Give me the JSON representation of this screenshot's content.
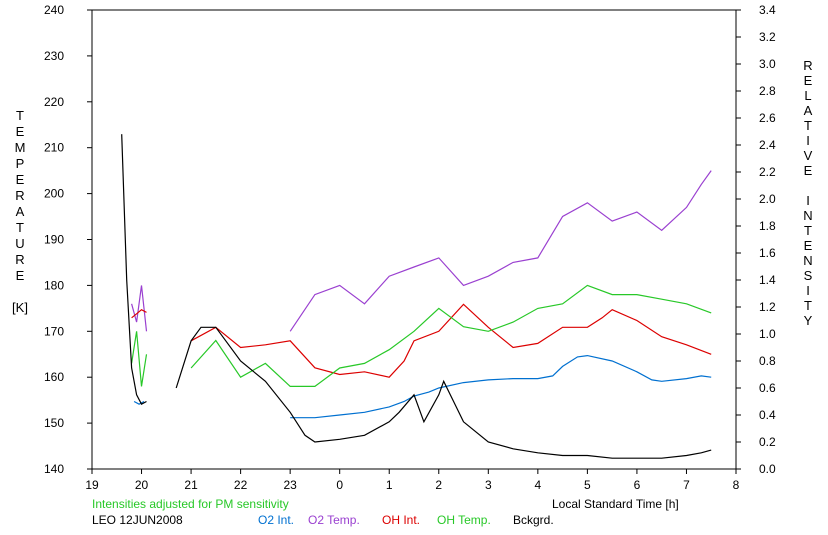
{
  "chart_data": {
    "type": "line",
    "note": "Intensities adjusted for PM sensitivity",
    "site_date": "LEO 12JUN2008",
    "xlabel": "Local Standard Time [h]",
    "left_axis_title": [
      "T",
      "E",
      "M",
      "P",
      "E",
      "R",
      "A",
      "T",
      "U",
      "R",
      "E",
      "",
      "[K]"
    ],
    "right_axis_title": [
      "R",
      "E",
      "L",
      "A",
      "T",
      "I",
      "V",
      "E",
      "",
      "I",
      "N",
      "T",
      "E",
      "N",
      "S",
      "I",
      "T",
      "Y"
    ],
    "x_domain": [
      19,
      32
    ],
    "x_ticks": [
      19,
      20,
      21,
      22,
      23,
      24,
      25,
      26,
      27,
      28,
      29,
      30,
      31,
      32
    ],
    "x_tick_labels": [
      "19",
      "20",
      "21",
      "22",
      "23",
      "0",
      "1",
      "2",
      "3",
      "4",
      "5",
      "6",
      "7",
      "8"
    ],
    "y_left": {
      "label": "Temperature [K]",
      "range": [
        140,
        240
      ],
      "ticks": [
        140,
        150,
        160,
        170,
        180,
        190,
        200,
        210,
        220,
        230,
        240
      ]
    },
    "y_right": {
      "label": "Relative Intensity",
      "range": [
        0.0,
        3.4
      ],
      "ticks": [
        "0.0",
        "0.2",
        "0.4",
        "0.6",
        "0.8",
        "1.0",
        "1.2",
        "1.4",
        "1.6",
        "1.8",
        "2.0",
        "2.2",
        "2.4",
        "2.6",
        "2.8",
        "3.0",
        "3.2",
        "3.4"
      ]
    },
    "grid": false,
    "legend_position": "bottom",
    "series": [
      {
        "name": "O2 Int.",
        "axis": "right",
        "color": "#0070d0",
        "x": [
          19.85,
          19.95,
          20.05,
          20.55,
          21.0,
          21.5,
          22.0,
          22.5,
          22.8,
          23.0,
          23.5,
          24.0,
          24.5,
          25.0,
          25.3,
          25.5,
          25.8,
          26.0,
          26.5,
          27.0,
          27.5,
          28.0,
          28.3,
          28.5,
          28.8,
          29.0,
          29.5,
          30.0,
          30.3,
          30.5,
          31.0,
          31.3,
          31.5
        ],
        "y": [
          0.5,
          0.48,
          0.5,
          null,
          null,
          null,
          null,
          null,
          null,
          0.38,
          0.38,
          0.4,
          0.42,
          0.46,
          0.5,
          0.54,
          0.57,
          0.6,
          0.64,
          0.66,
          0.67,
          0.67,
          0.69,
          0.76,
          0.83,
          0.84,
          0.8,
          0.72,
          0.66,
          0.65,
          0.67,
          0.69,
          0.68
        ]
      },
      {
        "name": "O2 Temp.",
        "axis": "left",
        "color": "#9a40d0",
        "x": [
          19.8,
          19.9,
          20.0,
          20.1,
          22.8,
          23.0,
          23.5,
          24.0,
          24.5,
          25.0,
          25.5,
          26.0,
          26.5,
          27.0,
          27.5,
          28.0,
          28.5,
          29.0,
          29.5,
          30.0,
          30.5,
          31.0,
          31.3,
          31.5
        ],
        "y": [
          176,
          172,
          180,
          170,
          null,
          170,
          178,
          180,
          176,
          182,
          184,
          186,
          180,
          182,
          185,
          186,
          195,
          198,
          194,
          196,
          192,
          197,
          202,
          205
        ]
      },
      {
        "name": "OH Int.",
        "axis": "right",
        "color": "#dc0000",
        "x": [
          19.8,
          19.9,
          20.0,
          20.1,
          20.5,
          21.0,
          21.5,
          22.0,
          22.5,
          23.0,
          23.5,
          24.0,
          24.5,
          25.0,
          25.3,
          25.5,
          26.0,
          26.5,
          27.0,
          27.5,
          28.0,
          28.5,
          29.0,
          29.3,
          29.5,
          30.0,
          30.5,
          31.0,
          31.5
        ],
        "y": [
          1.12,
          1.15,
          1.18,
          1.16,
          null,
          0.95,
          1.05,
          0.9,
          0.92,
          0.95,
          0.75,
          0.7,
          0.72,
          0.68,
          0.8,
          0.95,
          1.02,
          1.22,
          1.05,
          0.9,
          0.93,
          1.05,
          1.05,
          1.12,
          1.18,
          1.1,
          0.98,
          0.92,
          0.85
        ]
      },
      {
        "name": "OH Temp.",
        "axis": "left",
        "color": "#28c828",
        "x": [
          19.8,
          19.9,
          20.0,
          20.1,
          20.5,
          21.0,
          21.5,
          22.0,
          22.5,
          23.0,
          23.5,
          24.0,
          24.5,
          25.0,
          25.5,
          26.0,
          26.5,
          27.0,
          27.5,
          28.0,
          28.5,
          29.0,
          29.5,
          30.0,
          30.5,
          31.0,
          31.5
        ],
        "y": [
          163,
          170,
          158,
          165,
          null,
          162,
          168,
          160,
          163,
          158,
          158,
          162,
          163,
          166,
          170,
          175,
          171,
          170,
          172,
          175,
          176,
          180,
          178,
          178,
          177,
          176,
          174
        ]
      },
      {
        "name": "Bckgrd.",
        "axis": "right",
        "color": "#000000",
        "x": [
          19.6,
          19.7,
          19.8,
          19.9,
          20.0,
          20.1,
          20.5,
          20.7,
          21.0,
          21.2,
          21.5,
          22.0,
          22.5,
          23.0,
          23.3,
          23.5,
          24.0,
          24.5,
          25.0,
          25.2,
          25.5,
          25.7,
          26.0,
          26.1,
          26.3,
          26.5,
          27.0,
          27.5,
          28.0,
          28.5,
          29.0,
          29.5,
          30.0,
          30.5,
          31.0,
          31.3,
          31.5
        ],
        "y": [
          2.48,
          1.4,
          0.75,
          0.55,
          0.48,
          0.5,
          null,
          0.6,
          0.95,
          1.05,
          1.05,
          0.8,
          0.65,
          0.42,
          0.25,
          0.2,
          0.22,
          0.25,
          0.35,
          0.42,
          0.55,
          0.35,
          0.55,
          0.65,
          0.5,
          0.35,
          0.2,
          0.15,
          0.12,
          0.1,
          0.1,
          0.08,
          0.08,
          0.08,
          0.1,
          0.12,
          0.14
        ]
      }
    ]
  }
}
